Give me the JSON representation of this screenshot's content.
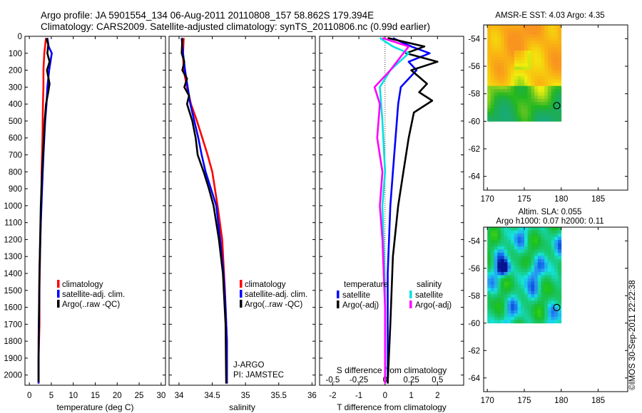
{
  "header": {
    "line1": "Argo profile: JA 5901554_134 06-Aug-2011 20110808_157 58.862S 179.394E",
    "line2": "Climatology: CARS2009. Satellite-adjusted climatology: synTS_20110806.nc (0.99d earlier)"
  },
  "watermark": "©IMOS 30-Sep-2011 22:22:38",
  "colors": {
    "climatology": "#ff0000",
    "satellite": "#0000ff",
    "argo": "#000000",
    "salinity_satellite": "#00e0e0",
    "salinity_argo": "#ff00ff"
  },
  "depth_axis": {
    "ticks": [
      0,
      100,
      200,
      300,
      400,
      500,
      600,
      700,
      800,
      900,
      1000,
      1100,
      1200,
      1300,
      1400,
      1500,
      1600,
      1700,
      1800,
      1900,
      2000
    ],
    "ylim": [
      0,
      2060
    ],
    "reversed": true
  },
  "chart_data": [
    {
      "type": "line",
      "id": "temperature",
      "xlabel": "temperature (deg C)",
      "xlim": [
        -1,
        31
      ],
      "xticks": [
        0,
        5,
        10,
        15,
        20,
        25,
        30
      ],
      "legend": {
        "placement": "bottom-center",
        "entries": [
          "climatology",
          "satellite-adj. clim.",
          "Argo(..raw -QC)"
        ]
      },
      "series": [
        {
          "name": "climatology",
          "color": "#ff0000",
          "x": [
            3.8,
            3.4,
            3.2,
            3.2,
            3.1,
            3.0,
            2.8,
            2.7,
            2.5,
            2.3,
            2.3,
            2.1,
            2.1
          ],
          "y": [
            10,
            100,
            200,
            300,
            400,
            600,
            800,
            1000,
            1200,
            1500,
            1700,
            1900,
            2050
          ]
        },
        {
          "name": "satellite-adj. clim.",
          "color": "#0000ff",
          "x": [
            4.1,
            4.4,
            5.1,
            4.5,
            4.1,
            3.9,
            3.6,
            3.2,
            2.9,
            2.6,
            2.3,
            2.2,
            2.1,
            2.1
          ],
          "y": [
            10,
            60,
            100,
            200,
            300,
            400,
            500,
            700,
            900,
            1100,
            1400,
            1700,
            1900,
            2050
          ]
        },
        {
          "name": "Argo(..raw -QC)",
          "color": "#000000",
          "x": [
            3.9,
            4.3,
            4.1,
            4.6,
            4.0,
            4.6,
            4.3,
            3.8,
            3.5,
            3.3,
            2.9,
            2.6,
            2.3,
            2.1,
            2.1
          ],
          "y": [
            10,
            50,
            100,
            150,
            200,
            280,
            330,
            400,
            500,
            600,
            800,
            1000,
            1400,
            1800,
            2040
          ]
        }
      ]
    },
    {
      "type": "line",
      "id": "salinity",
      "xlabel": "salinity",
      "xlim": [
        33.85,
        36.05
      ],
      "xticks": [
        34,
        34.5,
        35,
        35.5,
        36
      ],
      "legend": {
        "placement": "bottom-right",
        "entries": [
          "climatology",
          "satellite-adj. clim.",
          "Argo(..raw -QC)"
        ]
      },
      "annotation": [
        "J-ARGO",
        "PI: JAMSTEC"
      ],
      "series": [
        {
          "name": "climatology",
          "color": "#ff0000",
          "x": [
            34.07,
            34.06,
            34.07,
            34.12,
            34.18,
            34.27,
            34.35,
            34.43,
            34.5,
            34.58,
            34.65,
            34.69,
            34.72,
            34.72
          ],
          "y": [
            10,
            100,
            200,
            300,
            400,
            500,
            600,
            700,
            800,
            1000,
            1200,
            1500,
            1800,
            2050
          ]
        },
        {
          "name": "satellite-adj. clim.",
          "color": "#0000ff",
          "x": [
            34.04,
            34.06,
            34.09,
            34.13,
            34.17,
            34.23,
            34.29,
            34.34,
            34.4,
            34.48,
            34.56,
            34.62,
            34.67,
            34.7,
            34.72,
            34.72
          ],
          "y": [
            10,
            100,
            200,
            300,
            400,
            500,
            600,
            700,
            800,
            900,
            1000,
            1200,
            1400,
            1600,
            1800,
            2050
          ]
        },
        {
          "name": "Argo(..raw -QC)",
          "color": "#000000",
          "x": [
            34.05,
            34.04,
            34.08,
            34.05,
            34.12,
            34.08,
            34.15,
            34.12,
            34.2,
            34.25,
            34.28,
            34.37,
            34.45,
            34.52,
            34.6,
            34.66,
            34.7,
            34.71
          ],
          "y": [
            10,
            100,
            150,
            200,
            250,
            300,
            350,
            400,
            500,
            600,
            700,
            800,
            900,
            1000,
            1200,
            1400,
            1700,
            2050
          ]
        }
      ]
    },
    {
      "type": "line",
      "id": "difference",
      "xlabel": "T difference from climatology",
      "xlim": [
        -2.5,
        3.0
      ],
      "xticks": [
        -2,
        -1,
        0,
        1,
        2
      ],
      "x2label": "S difference from climatology",
      "x2ticks": [
        "-0.5",
        "-0.25",
        "0",
        "0.25",
        "0.5"
      ],
      "legend": {
        "placement": "bottom",
        "groups": [
          {
            "title": "temperature",
            "entries": [
              "satellite",
              "Argo(-adj)"
            ]
          },
          {
            "title": "salinity",
            "entries": [
              "satellite",
              "Argo(-adj)"
            ]
          }
        ]
      },
      "series": [
        {
          "name": "satellite",
          "group": "temperature",
          "color": "#0000ff",
          "x": [
            0.3,
            1.0,
            1.7,
            0.9,
            1.2,
            0.6,
            0.5,
            0.4,
            0.3,
            0.2,
            0.1,
            0.1,
            0.1
          ],
          "y": [
            10,
            60,
            100,
            150,
            200,
            300,
            400,
            600,
            800,
            1000,
            1400,
            1800,
            2050
          ]
        },
        {
          "name": "Argo(-adj)",
          "group": "temperature",
          "color": "#000000",
          "x": [
            0.1,
            1.5,
            0.8,
            2.0,
            1.0,
            1.6,
            1.3,
            1.8,
            1.1,
            0.9,
            0.7,
            0.5,
            0.3,
            0.2,
            0.1
          ],
          "y": [
            10,
            60,
            100,
            150,
            200,
            280,
            330,
            380,
            450,
            600,
            800,
            1000,
            1300,
            1700,
            2050
          ]
        },
        {
          "name": "satellite",
          "group": "salinity",
          "color": "#00e0e0",
          "x": [
            -0.2,
            0.3,
            0.9,
            0.2,
            -0.2,
            -0.1,
            0.0,
            -0.1,
            0.0,
            0.0
          ],
          "y": [
            10,
            60,
            100,
            200,
            300,
            500,
            800,
            1000,
            1500,
            2050
          ]
        },
        {
          "name": "Argo(-adj)",
          "group": "salinity",
          "color": "#ff00ff",
          "x": [
            -0.1,
            0.9,
            0.7,
            0.2,
            -0.4,
            -0.2,
            -0.3,
            -0.1,
            -0.2,
            -0.1,
            0.0,
            0.0
          ],
          "y": [
            10,
            60,
            100,
            200,
            300,
            400,
            600,
            800,
            1000,
            1200,
            1600,
            2050
          ]
        }
      ]
    },
    {
      "type": "heatmap",
      "id": "sst-map",
      "title": "AMSR-E SST: 4.03 Argo: 4.35",
      "xlim": [
        169.5,
        189
      ],
      "ylim": [
        -65,
        -53
      ],
      "xticks": [
        170,
        175,
        180,
        185
      ],
      "yticks": [
        -54,
        -56,
        -58,
        -60,
        -62,
        -64
      ],
      "data_extent": {
        "lon": [
          170,
          180
        ],
        "lat": [
          -60,
          -53
        ]
      },
      "marker": {
        "lon": 179.394,
        "lat": -58.862
      }
    },
    {
      "type": "heatmap",
      "id": "sla-map",
      "title": [
        "Altim. SLA: 0.055",
        "Argo h1000: 0.07 h2000: 0.11"
      ],
      "xlim": [
        169.5,
        189
      ],
      "ylim": [
        -65,
        -53
      ],
      "xticks": [
        170,
        175,
        180,
        185
      ],
      "yticks": [
        -54,
        -56,
        -58,
        -60,
        -62,
        -64
      ],
      "data_extent": {
        "lon": [
          170,
          180
        ],
        "lat": [
          -60,
          -53
        ]
      },
      "marker": {
        "lon": 179.394,
        "lat": -58.862
      }
    }
  ]
}
